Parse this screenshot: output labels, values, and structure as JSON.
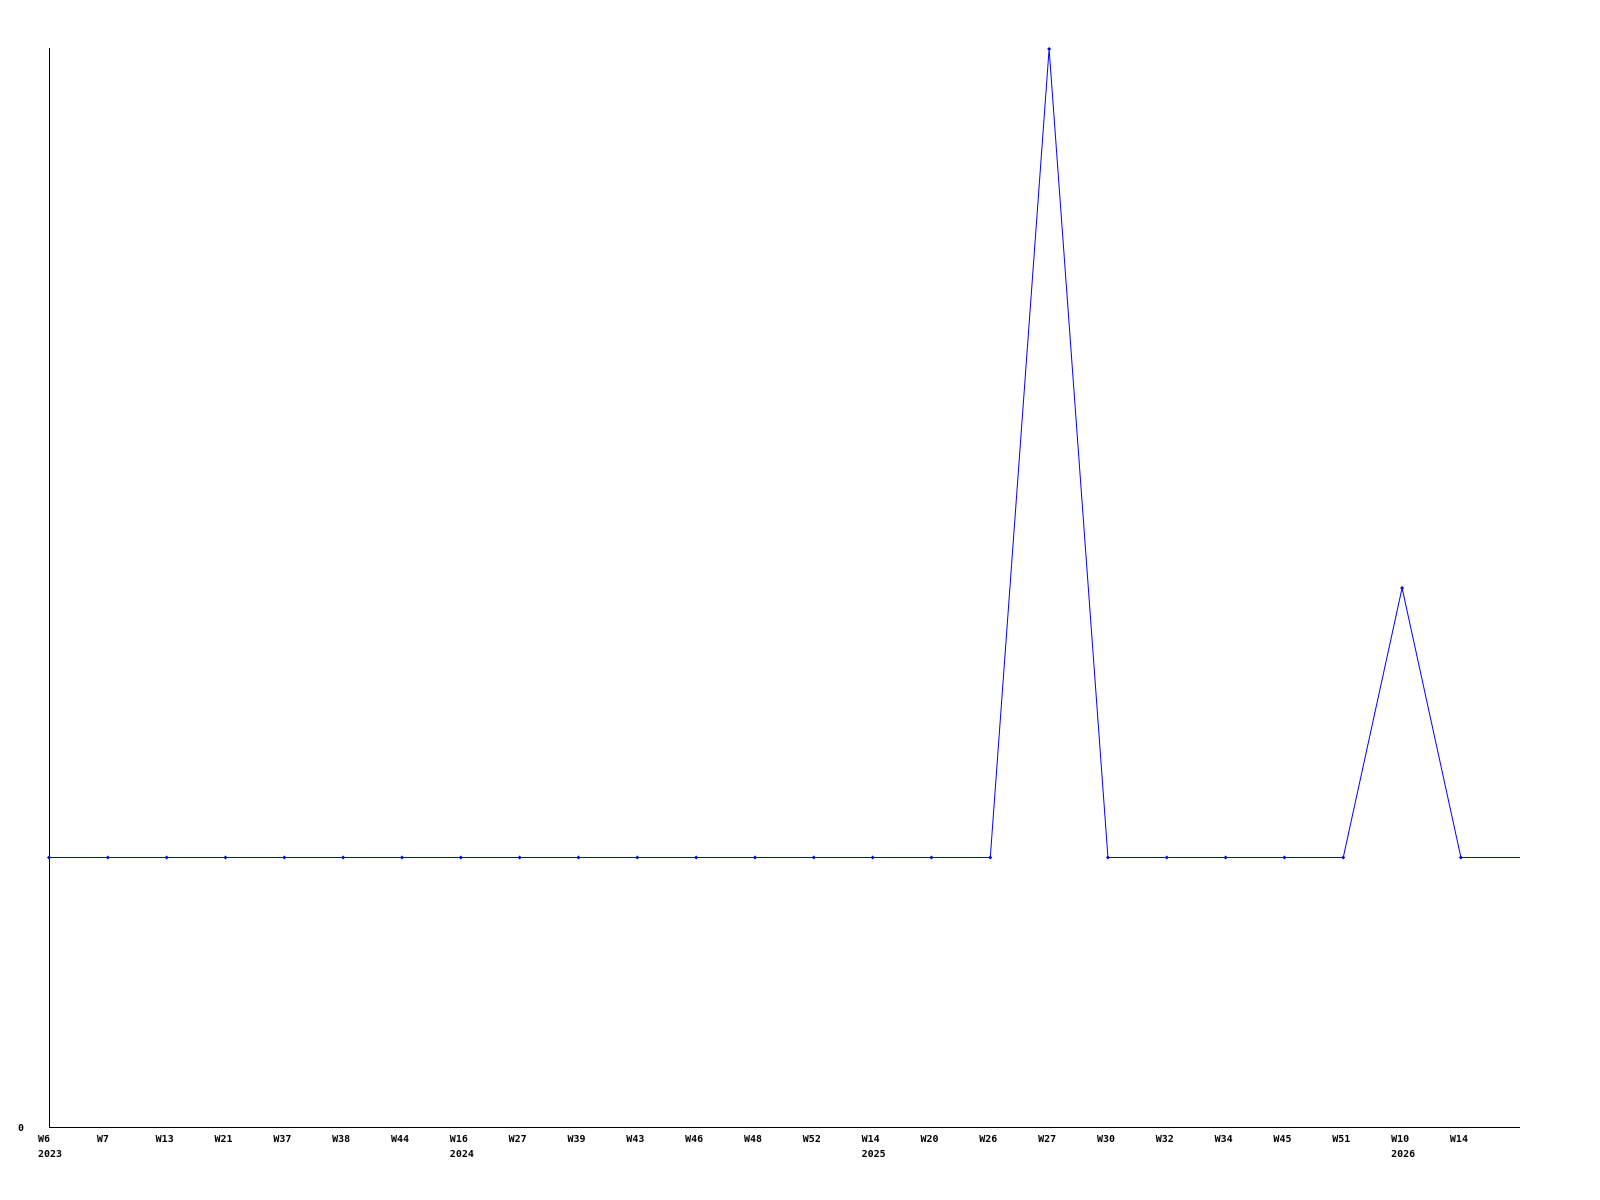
{
  "chart_data": {
    "type": "line",
    "title": "",
    "xlabel": "",
    "ylabel": "",
    "y_tick_labels": [
      "0"
    ],
    "ylim": [
      0,
      4
    ],
    "grid": false,
    "line_color": "#0000ff",
    "x": [
      {
        "week": "W6",
        "year": "2023"
      },
      {
        "week": "W7",
        "year": ""
      },
      {
        "week": "W13",
        "year": ""
      },
      {
        "week": "W21",
        "year": ""
      },
      {
        "week": "W37",
        "year": ""
      },
      {
        "week": "W38",
        "year": ""
      },
      {
        "week": "W44",
        "year": ""
      },
      {
        "week": "W16",
        "year": "2024"
      },
      {
        "week": "W27",
        "year": ""
      },
      {
        "week": "W39",
        "year": ""
      },
      {
        "week": "W43",
        "year": ""
      },
      {
        "week": "W46",
        "year": ""
      },
      {
        "week": "W48",
        "year": ""
      },
      {
        "week": "W52",
        "year": ""
      },
      {
        "week": "W14",
        "year": "2025"
      },
      {
        "week": "W20",
        "year": ""
      },
      {
        "week": "W26",
        "year": ""
      },
      {
        "week": "W27",
        "year": ""
      },
      {
        "week": "W30",
        "year": ""
      },
      {
        "week": "W32",
        "year": ""
      },
      {
        "week": "W34",
        "year": ""
      },
      {
        "week": "W45",
        "year": ""
      },
      {
        "week": "W51",
        "year": ""
      },
      {
        "week": "W10",
        "year": "2026"
      },
      {
        "week": "W14",
        "year": ""
      }
    ],
    "values": [
      1,
      1,
      1,
      1,
      1,
      1,
      1,
      1,
      1,
      1,
      1,
      1,
      1,
      1,
      1,
      1,
      1,
      4,
      1,
      1,
      1,
      1,
      1,
      2,
      1
    ]
  }
}
